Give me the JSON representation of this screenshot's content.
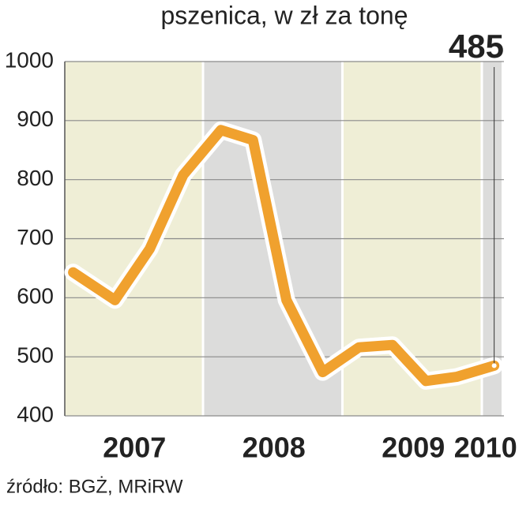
{
  "chart_data": {
    "type": "line",
    "title": "pszenica, w zł za tonę",
    "annotation": "485",
    "source": "źródło: BGŻ, MRiRW",
    "x": [
      2007.06,
      2007.36,
      2007.61,
      2007.85,
      2008.12,
      2008.35,
      2008.59,
      2008.85,
      2009.11,
      2009.35,
      2009.59,
      2009.81,
      2010.08
    ],
    "series": [
      {
        "name": "pszenica",
        "color": "#f0a12e",
        "values": [
          643,
          596,
          683,
          808,
          884,
          867,
          596,
          474,
          516,
          520,
          459,
          466,
          485
        ]
      }
    ],
    "xlim": [
      2007,
      2010.15
    ],
    "xticks": [
      2007,
      2008,
      2009,
      2010
    ],
    "ylim": [
      400,
      1000
    ],
    "yticks": [
      400,
      500,
      600,
      700,
      800,
      900,
      1000
    ],
    "grid": true,
    "band_colors": [
      "#efeed6",
      "#dcdcdb"
    ]
  }
}
